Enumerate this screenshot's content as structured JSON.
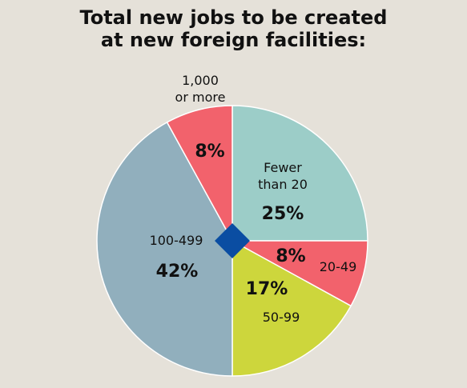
{
  "chart_data": {
    "type": "pie",
    "title_lines": [
      "Total new jobs to be created",
      "at new foreign facilities:"
    ],
    "slices": [
      {
        "label_lines": [
          "Fewer",
          "than 20"
        ],
        "value": 25,
        "value_label": "25%",
        "color": "#9ccdc8"
      },
      {
        "label_lines": [
          "20-49"
        ],
        "value": 8,
        "value_label": "8%",
        "color": "#f2626c"
      },
      {
        "label_lines": [
          "50-99"
        ],
        "value": 17,
        "value_label": "17%",
        "color": "#cdd63c"
      },
      {
        "label_lines": [
          "100-499"
        ],
        "value": 42,
        "value_label": "42%",
        "color": "#91afbd"
      },
      {
        "label_lines": [
          "1,000",
          "or more"
        ],
        "value": 8,
        "value_label": "8%",
        "color": "#f2626c"
      }
    ],
    "center_marker_color": "#0a4da2",
    "border_color": "#ffffff",
    "legend": "none"
  }
}
